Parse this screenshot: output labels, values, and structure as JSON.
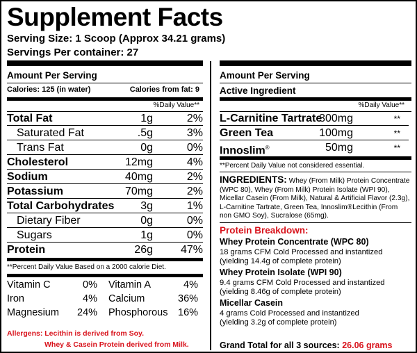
{
  "title": "Supplement Facts",
  "serving_size": "Serving Size: 1 Scoop (Approx 34.21 grams)",
  "servings_per_container": "Servings Per container: 27",
  "left": {
    "amount_per_serving": "Amount Per Serving",
    "calories": "Calories:  125 (in water)",
    "calories_from_fat": "Calories from fat:  9",
    "daily_value_header": "%Daily Value**",
    "nutrients": [
      {
        "name": "Total Fat",
        "amount": "1g",
        "pct": "2%"
      },
      {
        "name": "Saturated Fat",
        "amount": ".5g",
        "pct": "3%"
      },
      {
        "name": "Trans Fat",
        "amount": "0g",
        "pct": "0%"
      },
      {
        "name": "Cholesterol",
        "amount": "12mg",
        "pct": "4%"
      },
      {
        "name": "Sodium",
        "amount": "40mg",
        "pct": "2%"
      },
      {
        "name": "Potassium",
        "amount": "70mg",
        "pct": "2%"
      },
      {
        "name": "Total Carbohydrates",
        "amount": "3g",
        "pct": "1%"
      },
      {
        "name": "Dietary Fiber",
        "amount": "0g",
        "pct": "0%"
      },
      {
        "name": "Sugars",
        "amount": "1g",
        "pct": "0%"
      },
      {
        "name": "Protein",
        "amount": "26g",
        "pct": "47%"
      }
    ],
    "footnote": "**Percent Daily Value Based on a 2000 calorie Diet.",
    "vitamins": [
      {
        "name": "Vitamin C",
        "pct": "0%",
        "name2": "Vitamin A",
        "pct2": "4%"
      },
      {
        "name": "Iron",
        "pct": "4%",
        "name2": "Calcium",
        "pct2": "36%"
      },
      {
        "name": "Magnesium",
        "pct": "24%",
        "name2": "Phosphorous",
        "pct2": "16%"
      }
    ],
    "allergens_line1": "Allergens: Lecithin is derived from Soy.",
    "allergens_line2": "Whey & Casein Protein derived from Milk."
  },
  "right": {
    "amount_per_serving": "Amount Per Serving",
    "active_ingredient": "Active Ingredient",
    "daily_value_header": "%Daily Value**",
    "actives": [
      {
        "name": "L-Carnitine Tartrate",
        "amount": "300mg",
        "dv": "**",
        "reg": ""
      },
      {
        "name": "Green Tea",
        "amount": "100mg",
        "dv": "**",
        "reg": ""
      },
      {
        "name": "Innoslim",
        "amount": "50mg",
        "dv": "**",
        "reg": "®"
      }
    ],
    "footnote": "**Percent Daily Value not considered essential.",
    "ingredients_label": "INGREDIENTS:",
    "ingredients_text": "Whey (From Milk) Protein Concentrate (WPC 80), Whey (From Milk) Protein Isolate (WPI 90), Micellar Casein (From Milk), Natural & Artificial Flavor (2.3g), L-Carnitine Tartrate, Green Tea, Innoslim®Lecithin (From non GMO Soy), Sucralose (65mg).",
    "breakdown_title": "Protein Breakdown:",
    "breakdown": [
      {
        "head": "Whey Protein Concentrate (WPC 80)",
        "line1": "18 grams CFM Cold Processed and instantized",
        "line2": "(yielding 14.4g of complete protein)"
      },
      {
        "head": "Whey Protein Isolate (WPI 90)",
        "line1": "9.4 grams CFM Cold Processed and instantized",
        "line2": "(yielding 8.46g of complete protein)"
      },
      {
        "head": "Micellar Casein",
        "line1": "4 grams Cold Processed and instantized",
        "line2": "(yielding 3.2g of complete protein)"
      }
    ],
    "grand_total_label": "Grand Total for all 3 sources:",
    "grand_total_value": "26.06 grams"
  }
}
